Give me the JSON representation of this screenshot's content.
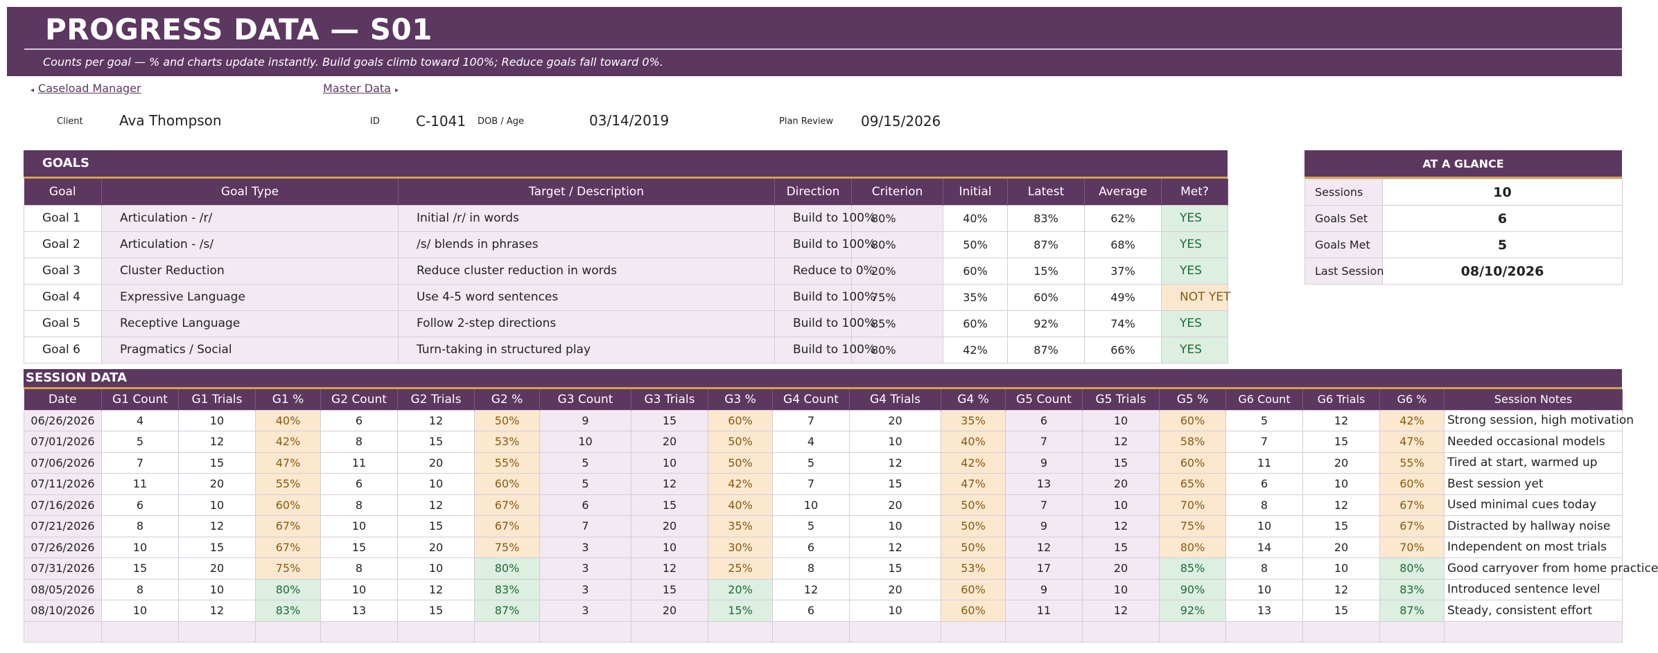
{
  "banner": {
    "title": "PROGRESS DATA — S01",
    "subtitle": "Counts per goal — % and charts update instantly. Build goals climb toward 100%; Reduce goals fall toward 0%."
  },
  "nav": {
    "back_label": "Caseload Manager",
    "back_arrow": "◂",
    "forward_label": "Master Data",
    "forward_arrow": "▸"
  },
  "client_info": {
    "client_label": "Client",
    "client_value": "Ava Thompson",
    "id_label": "ID",
    "id_value": "C-1041",
    "dob_label": "DOB / Age",
    "dob_value": "03/14/2019",
    "review_label": "Plan Review",
    "review_value": "09/15/2026"
  },
  "goals": {
    "title": "GOALS",
    "columns": [
      "Goal",
      "Goal Type",
      "Target / Description",
      "Direction",
      "Criterion",
      "Initial",
      "Latest",
      "Average",
      "Met?"
    ],
    "rows": [
      {
        "goal": "Goal 1",
        "type": "Articulation - /r/",
        "target": "Initial /r/ in words",
        "direction": "Build to 100%",
        "criterion": "80%",
        "initial": "40%",
        "latest": "83%",
        "average": "62%",
        "met": "YES"
      },
      {
        "goal": "Goal 2",
        "type": "Articulation - /s/",
        "target": "/s/ blends in phrases",
        "direction": "Build to 100%",
        "criterion": "80%",
        "initial": "50%",
        "latest": "87%",
        "average": "68%",
        "met": "YES"
      },
      {
        "goal": "Goal 3",
        "type": "Cluster Reduction",
        "target": "Reduce cluster reduction in words",
        "direction": "Reduce to 0%",
        "criterion": "20%",
        "initial": "60%",
        "latest": "15%",
        "average": "37%",
        "met": "YES"
      },
      {
        "goal": "Goal 4",
        "type": "Expressive Language",
        "target": "Use 4-5 word sentences",
        "direction": "Build to 100%",
        "criterion": "75%",
        "initial": "35%",
        "latest": "60%",
        "average": "49%",
        "met": "NOT YET"
      },
      {
        "goal": "Goal 5",
        "type": "Receptive Language",
        "target": "Follow 2-step directions",
        "direction": "Build to 100%",
        "criterion": "85%",
        "initial": "60%",
        "latest": "92%",
        "average": "74%",
        "met": "YES"
      },
      {
        "goal": "Goal 6",
        "type": "Pragmatics / Social",
        "target": "Turn-taking in structured play",
        "direction": "Build to 100%",
        "criterion": "80%",
        "initial": "42%",
        "latest": "87%",
        "average": "66%",
        "met": "YES"
      }
    ]
  },
  "glance": {
    "title": "AT A GLANCE",
    "rows": [
      {
        "label": "Sessions",
        "value": "10"
      },
      {
        "label": "Goals Set",
        "value": "6"
      },
      {
        "label": "Goals Met",
        "value": "5"
      },
      {
        "label": "Last Session",
        "value": "08/10/2026"
      }
    ]
  },
  "sessions": {
    "title": "SESSION DATA",
    "columns": [
      "Date",
      "G1 Count",
      "G1 Trials",
      "G1 %",
      "G2 Count",
      "G2 Trials",
      "G2 %",
      "G3 Count",
      "G3 Trials",
      "G3 %",
      "G4 Count",
      "G4 Trials",
      "G4 %",
      "G5 Count",
      "G5 Trials",
      "G5 %",
      "G6 Count",
      "G6 Trials",
      "G6 %",
      "Session Notes"
    ],
    "rows": [
      {
        "date": "06/26/2026",
        "cells": [
          "4",
          "10",
          "40%",
          "6",
          "12",
          "50%",
          "9",
          "15",
          "60%",
          "7",
          "20",
          "35%",
          "6",
          "10",
          "60%",
          "5",
          "12",
          "42%"
        ],
        "status": [
          "lo",
          "lo",
          "lo",
          "lo",
          "lo",
          "lo"
        ],
        "note": "Strong session, high motivation"
      },
      {
        "date": "07/01/2026",
        "cells": [
          "5",
          "12",
          "42%",
          "8",
          "15",
          "53%",
          "10",
          "20",
          "50%",
          "4",
          "10",
          "40%",
          "7",
          "12",
          "58%",
          "7",
          "15",
          "47%"
        ],
        "status": [
          "lo",
          "lo",
          "lo",
          "lo",
          "lo",
          "lo"
        ],
        "note": "Needed occasional models"
      },
      {
        "date": "07/06/2026",
        "cells": [
          "7",
          "15",
          "47%",
          "11",
          "20",
          "55%",
          "5",
          "10",
          "50%",
          "5",
          "12",
          "42%",
          "9",
          "15",
          "60%",
          "11",
          "20",
          "55%"
        ],
        "status": [
          "lo",
          "lo",
          "lo",
          "lo",
          "lo",
          "lo"
        ],
        "note": "Tired at start, warmed up"
      },
      {
        "date": "07/11/2026",
        "cells": [
          "11",
          "20",
          "55%",
          "6",
          "10",
          "60%",
          "5",
          "12",
          "42%",
          "7",
          "15",
          "47%",
          "13",
          "20",
          "65%",
          "6",
          "10",
          "60%"
        ],
        "status": [
          "lo",
          "lo",
          "lo",
          "lo",
          "lo",
          "lo"
        ],
        "note": "Best session yet"
      },
      {
        "date": "07/16/2026",
        "cells": [
          "6",
          "10",
          "60%",
          "8",
          "12",
          "67%",
          "6",
          "15",
          "40%",
          "10",
          "20",
          "50%",
          "7",
          "10",
          "70%",
          "8",
          "12",
          "67%"
        ],
        "status": [
          "lo",
          "lo",
          "lo",
          "lo",
          "lo",
          "lo"
        ],
        "note": "Used minimal cues today"
      },
      {
        "date": "07/21/2026",
        "cells": [
          "8",
          "12",
          "67%",
          "10",
          "15",
          "67%",
          "7",
          "20",
          "35%",
          "5",
          "10",
          "50%",
          "9",
          "12",
          "75%",
          "10",
          "15",
          "67%"
        ],
        "status": [
          "lo",
          "lo",
          "lo",
          "lo",
          "lo",
          "lo"
        ],
        "note": "Distracted by hallway noise"
      },
      {
        "date": "07/26/2026",
        "cells": [
          "10",
          "15",
          "67%",
          "15",
          "20",
          "75%",
          "3",
          "10",
          "30%",
          "6",
          "12",
          "50%",
          "12",
          "15",
          "80%",
          "14",
          "20",
          "70%"
        ],
        "status": [
          "lo",
          "lo",
          "lo",
          "lo",
          "lo",
          "lo"
        ],
        "note": "Independent on most trials"
      },
      {
        "date": "07/31/2026",
        "cells": [
          "15",
          "20",
          "75%",
          "8",
          "10",
          "80%",
          "3",
          "12",
          "25%",
          "8",
          "15",
          "53%",
          "17",
          "20",
          "85%",
          "8",
          "10",
          "80%"
        ],
        "status": [
          "lo",
          "hi",
          "lo",
          "lo",
          "hi",
          "hi"
        ],
        "note": "Good carryover from home practice"
      },
      {
        "date": "08/05/2026",
        "cells": [
          "8",
          "10",
          "80%",
          "10",
          "12",
          "83%",
          "3",
          "15",
          "20%",
          "12",
          "20",
          "60%",
          "9",
          "10",
          "90%",
          "10",
          "12",
          "83%"
        ],
        "status": [
          "hi",
          "hi",
          "hi",
          "lo",
          "hi",
          "hi"
        ],
        "note": "Introduced sentence level"
      },
      {
        "date": "08/10/2026",
        "cells": [
          "10",
          "12",
          "83%",
          "13",
          "15",
          "87%",
          "3",
          "20",
          "15%",
          "6",
          "10",
          "60%",
          "11",
          "12",
          "92%",
          "13",
          "15",
          "87%"
        ],
        "status": [
          "hi",
          "hi",
          "hi",
          "lo",
          "hi",
          "hi"
        ],
        "note": "Steady, consistent effort"
      }
    ]
  }
}
